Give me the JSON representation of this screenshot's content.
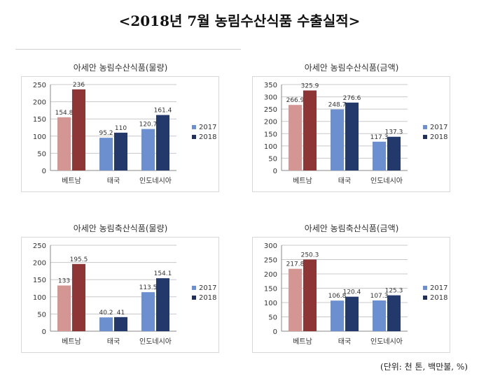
{
  "title": "<2018년 7월 농림수산식품 수출실적>",
  "unit_note": "(단위: 천 톤, 백만불, %)",
  "colors": {
    "s2017": [
      "#d39693",
      "#6b8fcf",
      "#6b8fcf"
    ],
    "s2018": [
      "#8e3535",
      "#23386b",
      "#23386b"
    ],
    "legend2017": "#6b8fcf",
    "legend2018": "#1f2f5a"
  },
  "chart_data": [
    {
      "type": "bar",
      "title": "아세안 농림수산식품(물량)",
      "categories": [
        "베트남",
        "태국",
        "인도네시아"
      ],
      "series": [
        {
          "name": "2017",
          "values": [
            154.8,
            95.2,
            120.7
          ],
          "labels": [
            "154.8",
            "95.2",
            "120.7"
          ]
        },
        {
          "name": "2018",
          "values": [
            236,
            110,
            161.4
          ],
          "labels": [
            "236",
            "110",
            "161.4"
          ]
        }
      ],
      "ylim": [
        0,
        250
      ],
      "yticks": [
        "0",
        "50",
        "100",
        "150",
        "200",
        "250"
      ],
      "legend": "right"
    },
    {
      "type": "bar",
      "title": "아세안 농림수산식품(금액)",
      "categories": [
        "베트남",
        "태국",
        "인도네시아"
      ],
      "series": [
        {
          "name": "2017",
          "values": [
            266.9,
            248.7,
            117.3
          ],
          "labels": [
            "266.9",
            "248.7",
            "117.3"
          ]
        },
        {
          "name": "2018",
          "values": [
            325.9,
            276.6,
            137.3
          ],
          "labels": [
            "325.9",
            "276.6",
            "137.3"
          ]
        }
      ],
      "ylim": [
        0,
        350
      ],
      "yticks": [
        "0",
        "50",
        "100",
        "150",
        "200",
        "250",
        "300",
        "350"
      ],
      "legend": "right"
    },
    {
      "type": "bar",
      "title": "아세안 농림축산식품(물량)",
      "categories": [
        "베트남",
        "태국",
        "인도네시아"
      ],
      "series": [
        {
          "name": "2017",
          "values": [
            133,
            40.2,
            113.5
          ],
          "labels": [
            "133",
            "40.2",
            "113.5"
          ]
        },
        {
          "name": "2018",
          "values": [
            195.5,
            41,
            154.1
          ],
          "labels": [
            "195.5",
            "41",
            "154.1"
          ]
        }
      ],
      "ylim": [
        0,
        250
      ],
      "yticks": [
        "0",
        "50",
        "100",
        "150",
        "200",
        "250"
      ],
      "legend": "right"
    },
    {
      "type": "bar",
      "title": "아세안 농림축산식품(금액)",
      "categories": [
        "베트남",
        "태국",
        "인도네시아"
      ],
      "series": [
        {
          "name": "2017",
          "values": [
            217.8,
            106.8,
            107.3
          ],
          "labels": [
            "217.8",
            "106.8",
            "107.3"
          ]
        },
        {
          "name": "2018",
          "values": [
            250.3,
            120.4,
            125.3
          ],
          "labels": [
            "250.3",
            "120.4",
            "125.3"
          ]
        }
      ],
      "ylim": [
        0,
        300
      ],
      "yticks": [
        "0",
        "50",
        "100",
        "150",
        "200",
        "250",
        "300"
      ],
      "legend": "right"
    }
  ]
}
